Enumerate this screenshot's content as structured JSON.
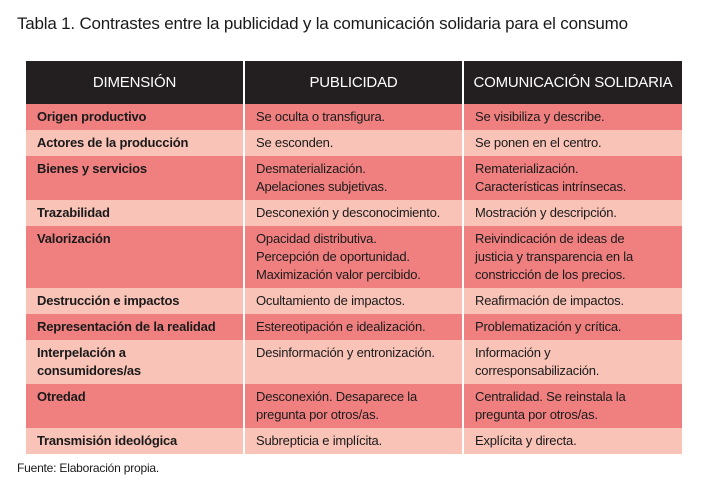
{
  "title": "Tabla 1. Contrastes entre la publicidad y la comunicación solidaria para el consumo",
  "table": {
    "headers": [
      "DIMENSIÓN",
      "PUBLICIDAD",
      "COMUNICACIÓN SOLIDARIA"
    ],
    "rows": [
      {
        "dimension": "Origen productivo",
        "publicidad": [
          "Se oculta o transfigura."
        ],
        "solidaria": [
          "Se visibiliza y describe."
        ],
        "shade": "dark"
      },
      {
        "dimension": "Actores de la producción",
        "publicidad": [
          "Se esconden."
        ],
        "solidaria": [
          "Se ponen en el centro."
        ],
        "shade": "light"
      },
      {
        "dimension": "Bienes y servicios",
        "publicidad": [
          "Desmaterialización.",
          "Apelaciones subjetivas."
        ],
        "solidaria": [
          "Rematerialización.",
          "Características intrínsecas."
        ],
        "shade": "dark"
      },
      {
        "dimension": "Trazabilidad",
        "publicidad": [
          "Desconexión y desconocimiento."
        ],
        "solidaria": [
          "Mostración y descripción."
        ],
        "shade": "light"
      },
      {
        "dimension": "Valorización",
        "publicidad": [
          "Opacidad distributiva.",
          "Percepción de oportunidad.",
          "Maximización valor percibido."
        ],
        "solidaria": [
          "Reivindicación de ideas de",
          "justicia y transparencia en la",
          "constricción de los precios."
        ],
        "shade": "dark"
      },
      {
        "dimension": "Destrucción e impactos",
        "publicidad": [
          "Ocultamiento de impactos."
        ],
        "solidaria": [
          "Reafirmación de impactos."
        ],
        "shade": "light"
      },
      {
        "dimension": "Representación de la realidad",
        "publicidad": [
          "Estereotipación e idealización."
        ],
        "solidaria": [
          "Problematización y crítica."
        ],
        "shade": "dark"
      },
      {
        "dimension": "Interpelación a consumidores/as",
        "publicidad": [
          "Desinformación y entronización."
        ],
        "solidaria": [
          "Información y corresponsabilización."
        ],
        "shade": "light"
      },
      {
        "dimension": "Otredad",
        "publicidad": [
          "Desconexión. Desaparece la",
          "pregunta por otros/as."
        ],
        "solidaria": [
          "Centralidad. Se reinstala la",
          "pregunta por otros/as."
        ],
        "shade": "dark"
      },
      {
        "dimension": "Transmisión ideológica",
        "publicidad": [
          "Subrepticia e implícita."
        ],
        "solidaria": [
          "Explícita y directa."
        ],
        "shade": "light"
      }
    ]
  },
  "footnote": "Fuente: Elaboración propia.",
  "colors": {
    "header_bg": "#231f20",
    "row_dark": "#f08080",
    "row_light": "#f9c3b7"
  }
}
